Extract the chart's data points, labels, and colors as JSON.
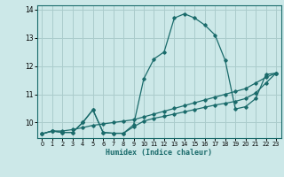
{
  "xlabel": "Humidex (Indice chaleur)",
  "xlim": [
    -0.5,
    23.5
  ],
  "ylim": [
    9.45,
    14.15
  ],
  "yticks": [
    10,
    11,
    12,
    13,
    14
  ],
  "xticks": [
    0,
    1,
    2,
    3,
    4,
    5,
    6,
    7,
    8,
    9,
    10,
    11,
    12,
    13,
    14,
    15,
    16,
    17,
    18,
    19,
    20,
    21,
    22,
    23
  ],
  "bg_color": "#cce8e8",
  "grid_color": "#aacccc",
  "line_color": "#1a6b6b",
  "line1_x": [
    0,
    1,
    2,
    3,
    4,
    5,
    6,
    7,
    8,
    9,
    10,
    11,
    12,
    13,
    14,
    15,
    16,
    17,
    18,
    19,
    20,
    21,
    22,
    23
  ],
  "line1_y": [
    9.6,
    9.7,
    9.65,
    9.65,
    10.0,
    10.45,
    9.65,
    9.62,
    9.62,
    9.85,
    10.05,
    10.15,
    10.22,
    10.3,
    10.38,
    10.46,
    10.54,
    10.62,
    10.68,
    10.75,
    10.85,
    11.05,
    11.4,
    11.75
  ],
  "line2_x": [
    0,
    1,
    2,
    3,
    4,
    5,
    6,
    7,
    8,
    9,
    10,
    11,
    12,
    13,
    14,
    15,
    16,
    17,
    18,
    19,
    20,
    21,
    22,
    23
  ],
  "line2_y": [
    9.6,
    9.7,
    9.7,
    9.75,
    9.82,
    9.9,
    9.95,
    10.0,
    10.05,
    10.1,
    10.2,
    10.3,
    10.4,
    10.5,
    10.6,
    10.7,
    10.8,
    10.9,
    11.0,
    11.1,
    11.2,
    11.4,
    11.6,
    11.75
  ],
  "line3_x": [
    0,
    1,
    2,
    3,
    4,
    5,
    6,
    7,
    8,
    9,
    10,
    11,
    12,
    13,
    14,
    15,
    16,
    17,
    18,
    19,
    20,
    21,
    22,
    23
  ],
  "line3_y": [
    9.6,
    9.7,
    9.65,
    9.65,
    10.0,
    10.45,
    9.65,
    9.62,
    9.62,
    9.92,
    11.55,
    12.25,
    12.5,
    13.7,
    13.85,
    13.7,
    13.45,
    13.1,
    12.2,
    10.48,
    10.56,
    10.85,
    11.7,
    11.75
  ]
}
